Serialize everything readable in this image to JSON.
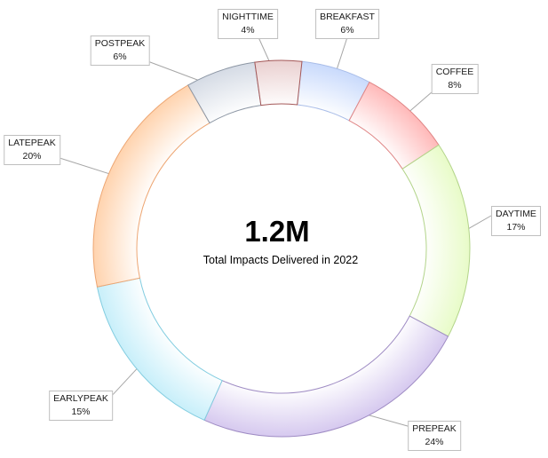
{
  "chart_data": {
    "type": "pie",
    "subtype": "donut",
    "center_value": "1.2M",
    "center_caption": "Total Impacts Delivered in 2022",
    "legend": "none",
    "slices": [
      {
        "label": "BREAKFAST",
        "value": 6,
        "value_label": "6%",
        "color": "#c9dafc",
        "edge": "#a9bde8"
      },
      {
        "label": "COFFEE",
        "value": 8,
        "value_label": "8%",
        "color": "#ffb9b9",
        "edge": "#e08585"
      },
      {
        "label": "DAYTIME",
        "value": 17,
        "value_label": "17%",
        "color": "#e8fbc8",
        "edge": "#b3d48a"
      },
      {
        "label": "PREPEAK",
        "value": 24,
        "value_label": "24%",
        "color": "#d6c9ef",
        "edge": "#9f8cc4"
      },
      {
        "label": "EARLYPEAK",
        "value": 15,
        "value_label": "15%",
        "color": "#c8effa",
        "edge": "#83cde0"
      },
      {
        "label": "LATEPEAK",
        "value": 20,
        "value_label": "20%",
        "color": "#ffd3ae",
        "edge": "#eda673"
      },
      {
        "label": "POSTPEAK",
        "value": 6,
        "value_label": "6%",
        "color": "#d5dbe5",
        "edge": "#8c96a4"
      },
      {
        "label": "NIGHTTIME",
        "value": 4,
        "value_label": "4%",
        "color": "#ead0d0",
        "edge": "#a45858"
      }
    ]
  }
}
